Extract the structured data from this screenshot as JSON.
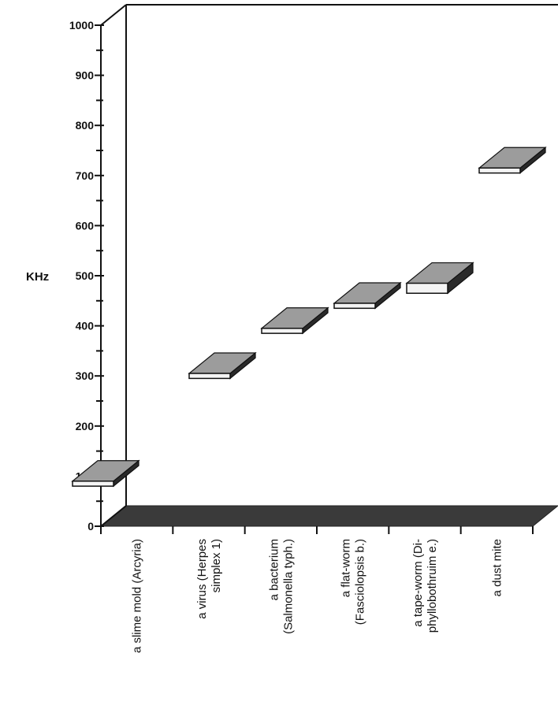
{
  "chart_data": {
    "type": "range-bar-3d",
    "title": "",
    "xlabel": "",
    "ylabel": "KHz",
    "ylim": [
      0,
      1000
    ],
    "y_ticks": [
      "0",
      "100",
      "200",
      "300",
      "400",
      "500",
      "600",
      "700",
      "800",
      "900",
      "1000"
    ],
    "categories": [
      {
        "lines": [
          "a slime mold (Arcyria)"
        ]
      },
      {
        "lines": [
          "a virus (Herpes",
          "simplex 1)"
        ]
      },
      {
        "lines": [
          "a bacterium",
          "(Salmonella typh.)"
        ]
      },
      {
        "lines": [
          "a flat-worm",
          "(Fasciolopsis b.)"
        ]
      },
      {
        "lines": [
          "a tape-worm (Di-",
          "phyllobothruim e.)"
        ]
      },
      {
        "lines": [
          "a dust mite"
        ]
      }
    ],
    "ranges": [
      {
        "low": 80,
        "high": 90
      },
      {
        "low": 295,
        "high": 305
      },
      {
        "low": 385,
        "high": 395
      },
      {
        "low": 435,
        "high": 445
      },
      {
        "low": 465,
        "high": 485
      },
      {
        "low": 705,
        "high": 715
      }
    ],
    "colors": {
      "bar_top": "#9c9c9c",
      "bar_front": "#f4f4f4",
      "bar_side": "#2a2a2a",
      "floor": "#3a3a3a",
      "axis": "#111111"
    }
  }
}
